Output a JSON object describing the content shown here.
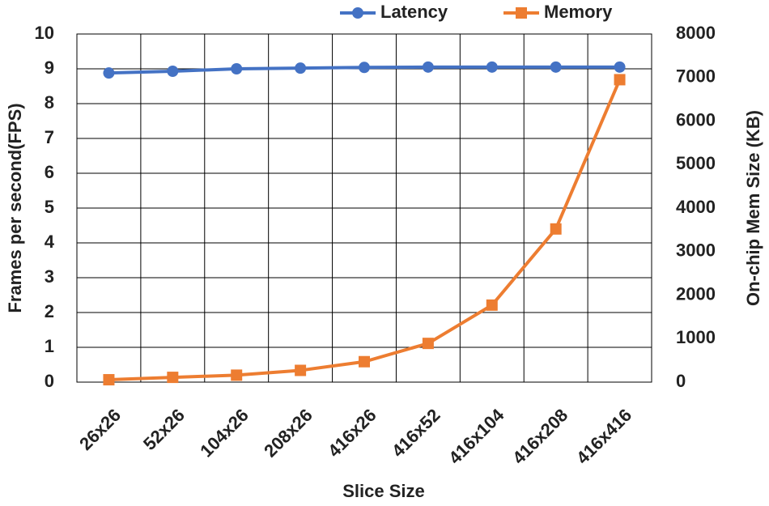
{
  "chart_data": {
    "type": "line",
    "x_label": "Slice Size",
    "y_label": "Frames per second(FPS)",
    "y2_label": "On-chip Mem Size (KB)",
    "categories": [
      "26x26",
      "52x26",
      "104x26",
      "208x26",
      "416x26",
      "416x52",
      "416x104",
      "416x208",
      "416x416"
    ],
    "series": [
      {
        "name": "Latency",
        "color": "#4472c4",
        "marker": "circle",
        "values": [
          8.88,
          8.93,
          9.0,
          9.02,
          9.04,
          9.05,
          9.05,
          9.05,
          9.05
        ]
      },
      {
        "name": "Memory",
        "color": "#ed7d31",
        "marker": "square",
        "axis": "y2",
        "values": [
          55,
          110,
          160,
          270,
          470,
          890,
          1770,
          3520,
          6950
        ]
      }
    ],
    "ylim": [
      0,
      10
    ],
    "yticks": [
      0,
      1,
      2,
      3,
      4,
      5,
      6,
      7,
      8,
      9,
      10
    ],
    "y2lim": [
      0,
      8000
    ],
    "y2ticks": [
      0,
      1000,
      2000,
      3000,
      4000,
      5000,
      6000,
      7000,
      8000
    ],
    "grid": true,
    "legend": "top"
  }
}
